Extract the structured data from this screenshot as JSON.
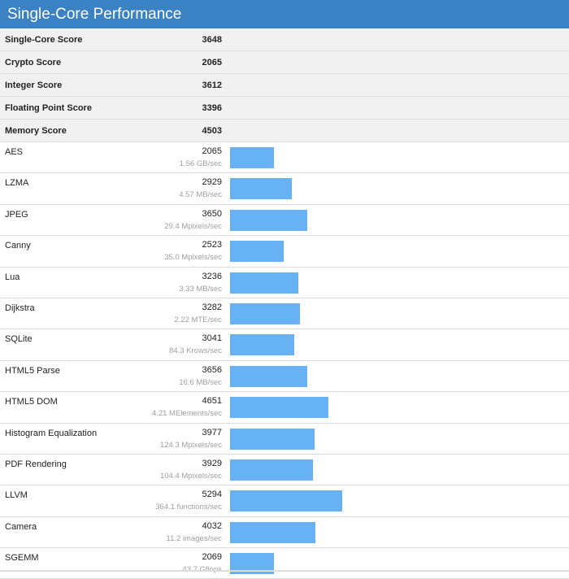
{
  "header": {
    "title": "Single-Core Performance"
  },
  "summary": [
    {
      "label": "Single-Core Score",
      "value": "3648"
    },
    {
      "label": "Crypto Score",
      "value": "2065"
    },
    {
      "label": "Integer Score",
      "value": "3612"
    },
    {
      "label": "Floating Point Score",
      "value": "3396"
    },
    {
      "label": "Memory Score",
      "value": "4503"
    }
  ],
  "benchmarks": [
    {
      "name": "AES",
      "score": 2065,
      "rate": "1.56 GB/sec"
    },
    {
      "name": "LZMA",
      "score": 2929,
      "rate": "4.57 MB/sec"
    },
    {
      "name": "JPEG",
      "score": 3650,
      "rate": "29.4 Mpixels/sec"
    },
    {
      "name": "Canny",
      "score": 2523,
      "rate": "35.0 Mpixels/sec"
    },
    {
      "name": "Lua",
      "score": 3236,
      "rate": "3.33 MB/sec"
    },
    {
      "name": "Dijkstra",
      "score": 3282,
      "rate": "2.22 MTE/sec"
    },
    {
      "name": "SQLite",
      "score": 3041,
      "rate": "84.3 Krows/sec"
    },
    {
      "name": "HTML5 Parse",
      "score": 3656,
      "rate": "16.6 MB/sec"
    },
    {
      "name": "HTML5 DOM",
      "score": 4651,
      "rate": "4.21 MElements/sec"
    },
    {
      "name": "Histogram Equalization",
      "score": 3977,
      "rate": "124.3 Mpixels/sec"
    },
    {
      "name": "PDF Rendering",
      "score": 3929,
      "rate": "104.4 Mpixels/sec"
    },
    {
      "name": "LLVM",
      "score": 5294,
      "rate": "364.1 functions/sec"
    },
    {
      "name": "Camera",
      "score": 4032,
      "rate": "11.2 images/sec"
    },
    {
      "name": "SGEMM",
      "score": 2069,
      "rate": "43.7 Gflops"
    }
  ],
  "colors": {
    "header": "#3a82c4",
    "bar": "#67b1f5"
  }
}
